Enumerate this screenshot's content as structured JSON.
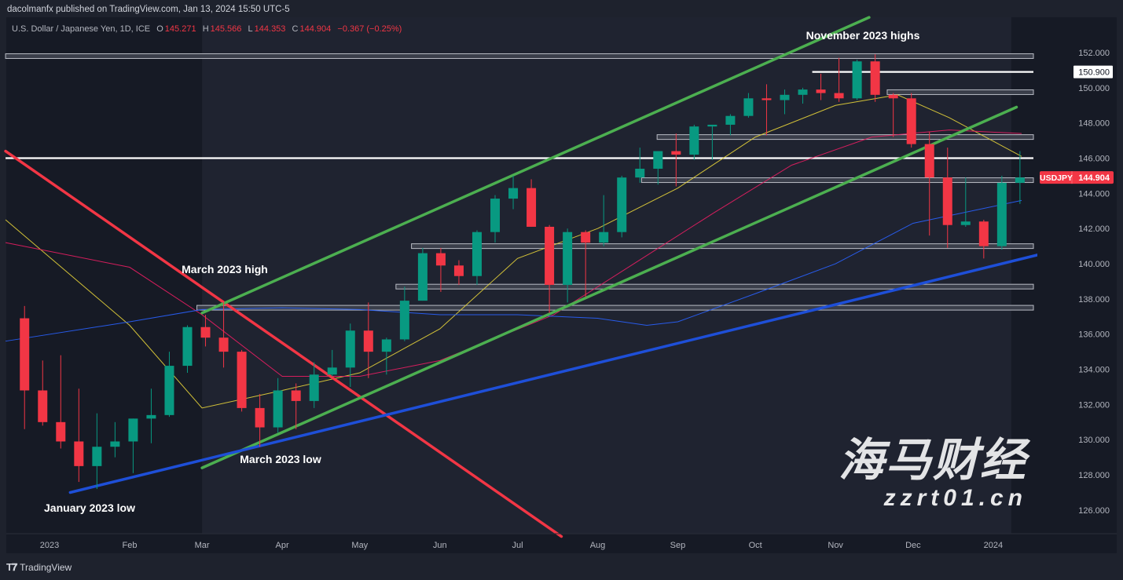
{
  "header": {
    "publisher": "dacolmanfx published on TradingView.com, Jan 13, 2024 15:50 UTC-5",
    "symbol_desc": "U.S. Dollar / Japanese Yen, 1D, ICE",
    "open_label": "O",
    "open": "145.271",
    "high_label": "H",
    "high": "145.566",
    "low_label": "L",
    "low": "144.353",
    "close_label": "C",
    "close": "144.904",
    "change": "−0.367 (−0.25%)"
  },
  "footer": {
    "brand": "TradingView"
  },
  "watermark": {
    "text": "海马财经",
    "url": "zzrt01.cn"
  },
  "colors": {
    "background": "#161a25",
    "up": "#089981",
    "down": "#f23645",
    "ma50": "#e5d33a",
    "ma100": "#e91e63",
    "ma200": "#2962ff",
    "green_channel": "#4caf50",
    "red_trendline": "#f23645",
    "blue_trendline": "#1e4fd8"
  },
  "chart_data": {
    "type": "candlestick",
    "symbol": "USDJPY",
    "interval_shown": "1D",
    "last_price": "144.904",
    "marked_level": "150.900",
    "ylim": [
      125,
      153
    ],
    "y_ticks": [
      "126.000",
      "128.000",
      "130.000",
      "132.000",
      "134.000",
      "136.000",
      "138.000",
      "140.000",
      "142.000",
      "144.000",
      "146.000",
      "148.000",
      "150.000",
      "152.000"
    ],
    "x_ticks": [
      {
        "label": "2023",
        "date": "2023-01-01"
      },
      {
        "label": "Feb",
        "date": "2023-02-01"
      },
      {
        "label": "Mar",
        "date": "2023-03-01"
      },
      {
        "label": "Apr",
        "date": "2023-04-01"
      },
      {
        "label": "May",
        "date": "2023-05-01"
      },
      {
        "label": "Jun",
        "date": "2023-06-01"
      },
      {
        "label": "Jul",
        "date": "2023-07-01"
      },
      {
        "label": "Aug",
        "date": "2023-08-01"
      },
      {
        "label": "Sep",
        "date": "2023-09-01"
      },
      {
        "label": "Oct",
        "date": "2023-10-01"
      },
      {
        "label": "Nov",
        "date": "2023-11-01"
      },
      {
        "label": "Dec",
        "date": "2023-12-01"
      },
      {
        "label": "2024",
        "date": "2024-01-01"
      }
    ],
    "ohlc_columns": [
      "date",
      "open",
      "high",
      "low",
      "close"
    ],
    "ohlc": [
      [
        "2022-12-19",
        136.9,
        137.6,
        130.6,
        132.8
      ],
      [
        "2022-12-26",
        132.8,
        134.5,
        130.8,
        131.0
      ],
      [
        "2023-01-02",
        131.0,
        134.8,
        129.5,
        129.9
      ],
      [
        "2023-01-09",
        129.9,
        132.9,
        127.6,
        128.5
      ],
      [
        "2023-01-16",
        128.5,
        131.5,
        127.2,
        129.6
      ],
      [
        "2023-01-23",
        129.6,
        131.0,
        129.0,
        129.9
      ],
      [
        "2023-01-30",
        129.9,
        131.2,
        128.1,
        131.2
      ],
      [
        "2023-02-06",
        131.2,
        132.9,
        129.8,
        131.4
      ],
      [
        "2023-02-13",
        131.4,
        135.0,
        131.3,
        134.2
      ],
      [
        "2023-02-20",
        134.2,
        136.5,
        133.8,
        136.4
      ],
      [
        "2023-02-27",
        136.4,
        137.1,
        135.3,
        135.8
      ],
      [
        "2023-03-06",
        135.8,
        137.9,
        134.1,
        135.0
      ],
      [
        "2023-03-13",
        135.0,
        135.1,
        131.6,
        131.8
      ],
      [
        "2023-03-20",
        131.8,
        132.6,
        129.6,
        130.7
      ],
      [
        "2023-03-27",
        130.7,
        133.5,
        130.4,
        132.8
      ],
      [
        "2023-04-03",
        132.8,
        133.2,
        130.6,
        132.2
      ],
      [
        "2023-04-10",
        132.2,
        134.4,
        131.8,
        133.7
      ],
      [
        "2023-04-17",
        133.7,
        135.1,
        133.6,
        134.1
      ],
      [
        "2023-04-24",
        134.1,
        136.6,
        133.0,
        136.2
      ],
      [
        "2023-05-01",
        136.2,
        137.8,
        133.5,
        135.0
      ],
      [
        "2023-05-08",
        135.0,
        135.8,
        133.7,
        135.7
      ],
      [
        "2023-05-15",
        135.7,
        138.7,
        135.6,
        137.9
      ],
      [
        "2023-05-22",
        137.9,
        140.9,
        137.9,
        140.6
      ],
      [
        "2023-05-29",
        140.6,
        140.9,
        138.4,
        139.9
      ],
      [
        "2023-06-05",
        139.9,
        140.2,
        138.8,
        139.3
      ],
      [
        "2023-06-12",
        139.3,
        141.9,
        138.8,
        141.8
      ],
      [
        "2023-06-19",
        141.8,
        143.9,
        141.2,
        143.7
      ],
      [
        "2023-06-26",
        143.7,
        145.0,
        143.1,
        144.3
      ],
      [
        "2023-07-03",
        144.3,
        144.8,
        142.1,
        142.1
      ],
      [
        "2023-07-10",
        142.1,
        142.2,
        137.2,
        138.8
      ],
      [
        "2023-07-17",
        138.8,
        142.0,
        137.8,
        141.8
      ],
      [
        "2023-07-24",
        141.8,
        141.9,
        138.1,
        141.2
      ],
      [
        "2023-07-31",
        141.2,
        143.9,
        141.0,
        141.8
      ],
      [
        "2023-08-07",
        141.8,
        145.0,
        141.5,
        144.9
      ],
      [
        "2023-08-14",
        144.9,
        146.6,
        144.6,
        145.4
      ],
      [
        "2023-08-21",
        145.4,
        146.4,
        144.5,
        146.4
      ],
      [
        "2023-08-28",
        146.4,
        147.4,
        144.4,
        146.2
      ],
      [
        "2023-09-04",
        146.2,
        147.9,
        145.9,
        147.8
      ],
      [
        "2023-09-11",
        147.8,
        147.9,
        145.9,
        147.9
      ],
      [
        "2023-09-18",
        147.9,
        148.5,
        147.3,
        148.4
      ],
      [
        "2023-09-25",
        148.4,
        149.7,
        148.3,
        149.4
      ],
      [
        "2023-10-02",
        149.4,
        150.2,
        147.3,
        149.3
      ],
      [
        "2023-10-09",
        149.3,
        149.9,
        148.5,
        149.6
      ],
      [
        "2023-10-16",
        149.6,
        150.0,
        149.1,
        149.9
      ],
      [
        "2023-10-23",
        149.9,
        150.8,
        149.3,
        149.7
      ],
      [
        "2023-10-30",
        149.7,
        151.7,
        149.2,
        149.4
      ],
      [
        "2023-11-06",
        149.4,
        151.6,
        149.3,
        151.5
      ],
      [
        "2023-11-13",
        151.5,
        151.9,
        149.2,
        149.6
      ],
      [
        "2023-11-20",
        149.6,
        149.7,
        147.2,
        149.4
      ],
      [
        "2023-11-27",
        149.4,
        149.7,
        146.6,
        146.8
      ],
      [
        "2023-12-04",
        146.8,
        147.5,
        141.6,
        144.9
      ],
      [
        "2023-12-11",
        144.9,
        146.6,
        140.9,
        142.2
      ],
      [
        "2023-12-18",
        142.2,
        144.9,
        142.1,
        142.4
      ],
      [
        "2023-12-25",
        142.4,
        142.5,
        140.3,
        141.0
      ],
      [
        "2024-01-01",
        141.0,
        145.0,
        140.8,
        144.6
      ],
      [
        "2024-01-08",
        144.6,
        146.4,
        143.4,
        144.9
      ]
    ],
    "moving_averages": [
      {
        "key": "ma50",
        "points": [
          [
            "2022-12-15",
            142.5
          ],
          [
            "2023-02-01",
            136.5
          ],
          [
            "2023-03-01",
            131.8
          ],
          [
            "2023-04-01",
            132.8
          ],
          [
            "2023-05-01",
            133.8
          ],
          [
            "2023-06-01",
            136.3
          ],
          [
            "2023-07-01",
            140.3
          ],
          [
            "2023-08-01",
            142.0
          ],
          [
            "2023-09-01",
            144.3
          ],
          [
            "2023-10-01",
            147.2
          ],
          [
            "2023-11-01",
            149.0
          ],
          [
            "2023-11-25",
            149.6
          ],
          [
            "2023-12-15",
            148.3
          ],
          [
            "2024-01-12",
            146.1
          ]
        ]
      },
      {
        "key": "ma100",
        "points": [
          [
            "2022-12-15",
            141.2
          ],
          [
            "2023-02-01",
            139.8
          ],
          [
            "2023-03-01",
            137.1
          ],
          [
            "2023-04-01",
            133.6
          ],
          [
            "2023-05-01",
            133.6
          ],
          [
            "2023-06-01",
            134.5
          ],
          [
            "2023-07-15",
            137.1
          ],
          [
            "2023-08-15",
            140.0
          ],
          [
            "2023-09-15",
            142.9
          ],
          [
            "2023-10-15",
            145.6
          ],
          [
            "2023-11-15",
            147.2
          ],
          [
            "2023-12-15",
            147.6
          ],
          [
            "2024-01-12",
            147.4
          ]
        ]
      },
      {
        "key": "ma200",
        "points": [
          [
            "2022-12-15",
            135.6
          ],
          [
            "2023-02-01",
            136.7
          ],
          [
            "2023-03-01",
            137.4
          ],
          [
            "2023-04-01",
            137.5
          ],
          [
            "2023-05-01",
            137.4
          ],
          [
            "2023-06-01",
            137.1
          ],
          [
            "2023-07-01",
            137.1
          ],
          [
            "2023-08-01",
            136.9
          ],
          [
            "2023-08-20",
            136.5
          ],
          [
            "2023-09-01",
            136.7
          ],
          [
            "2023-10-01",
            138.3
          ],
          [
            "2023-11-01",
            140.0
          ],
          [
            "2023-12-01",
            142.3
          ],
          [
            "2024-01-12",
            143.6
          ]
        ]
      }
    ],
    "trendlines": [
      {
        "key": "red_trendline",
        "from": [
          "2022-12-15",
          146.4
        ],
        "to": [
          "2023-07-18",
          124.5
        ]
      },
      {
        "key": "green_channel",
        "from": [
          "2023-03-01",
          137.2
        ],
        "to": [
          "2023-11-14",
          154.0
        ]
      },
      {
        "key": "green_channel",
        "from": [
          "2023-03-01",
          128.4
        ],
        "to": [
          "2024-01-10",
          148.9
        ]
      },
      {
        "key": "blue_trendline",
        "from": [
          "2023-01-09",
          127.0
        ],
        "to": [
          "2024-02-01",
          141.0
        ]
      }
    ],
    "horizontal_levels": [
      {
        "price": 151.8,
        "from": "2022-12-15",
        "style": "gray"
      },
      {
        "price": 150.9,
        "from": "2023-10-23",
        "style": "white"
      },
      {
        "price": 149.75,
        "from": "2023-11-21",
        "style": "gray"
      },
      {
        "price": 147.2,
        "from": "2023-08-24",
        "style": "gray"
      },
      {
        "price": 146.0,
        "from": "2022-12-15",
        "style": "white"
      },
      {
        "price": 144.75,
        "from": "2023-08-18",
        "style": "gray"
      },
      {
        "price": 141.0,
        "from": "2023-05-21",
        "style": "gray"
      },
      {
        "price": 138.7,
        "from": "2023-05-15",
        "style": "gray"
      },
      {
        "price": 137.5,
        "from": "2023-02-27",
        "style": "gray"
      }
    ],
    "highlight_range": [
      "2023-03-01",
      "2024-01-08"
    ],
    "annotations": [
      "November 2023 highs",
      "March 2023 high",
      "March 2023 low",
      "January 2023 low"
    ]
  }
}
